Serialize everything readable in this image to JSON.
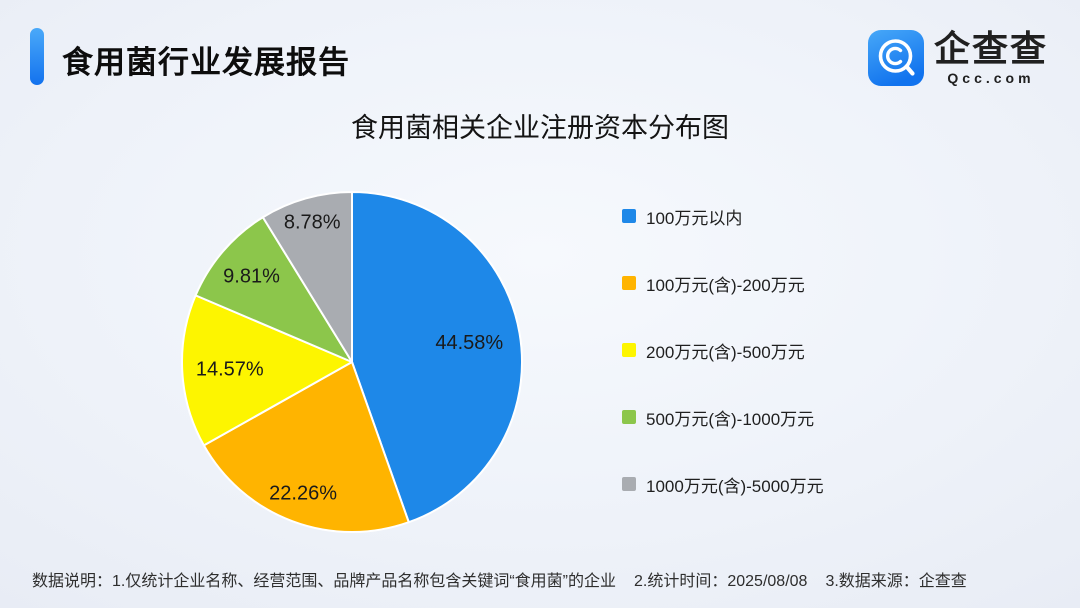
{
  "header": {
    "title": "食用菌行业发展报告",
    "logo": {
      "name": "企查查",
      "domain": "Qcc.com"
    }
  },
  "chart_data": {
    "type": "pie",
    "title": "食用菌相关企业注册资本分布图",
    "legend_position": "right",
    "start_angle": "top",
    "direction": "clockwise",
    "slices": [
      {
        "label": "100万元以内",
        "value": 44.58,
        "display": "44.58%",
        "color": "#1E88E8"
      },
      {
        "label": "100万元(含)-200万元",
        "value": 22.26,
        "display": "22.26%",
        "color": "#FFB400"
      },
      {
        "label": "200万元(含)-500万元",
        "value": 14.57,
        "display": "14.57%",
        "color": "#FDF500"
      },
      {
        "label": "500万元(含)-1000万元",
        "value": 9.81,
        "display": "9.81%",
        "color": "#8CC64B"
      },
      {
        "label": "1000万元(含)-5000万元",
        "value": 8.78,
        "display": "8.78%",
        "color": "#A9ACB1"
      }
    ]
  },
  "footer": {
    "parts": [
      "数据说明：1.仅统计企业名称、经营范围、品牌产品名称包含关键词“食用菌”的企业",
      "2.统计时间：2025/08/08",
      "3.数据来源：企查查"
    ]
  }
}
